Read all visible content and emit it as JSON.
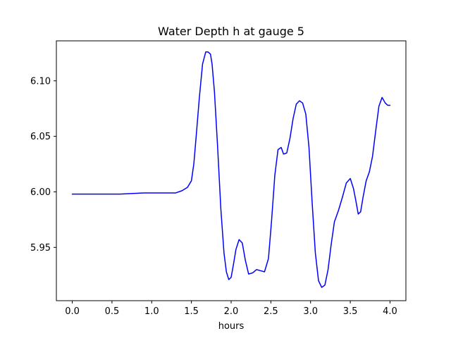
{
  "chart_data": {
    "type": "line",
    "title": "Water Depth h at gauge 5",
    "xlabel": "hours",
    "ylabel": "",
    "xlim": [
      -0.2,
      4.2
    ],
    "ylim": [
      5.902,
      6.136
    ],
    "xticks": [
      0.0,
      0.5,
      1.0,
      1.5,
      2.0,
      2.5,
      3.0,
      3.5,
      4.0
    ],
    "xtick_labels": [
      "0.0",
      "0.5",
      "1.0",
      "1.5",
      "2.0",
      "2.5",
      "3.0",
      "3.5",
      "4.0"
    ],
    "yticks": [
      5.95,
      6.0,
      6.05,
      6.1
    ],
    "ytick_labels": [
      "5.95",
      "6.00",
      "6.05",
      "6.10"
    ],
    "grid": false,
    "series": [
      {
        "color": "#0000ff",
        "x": [
          0.0,
          0.3,
          0.6,
          0.9,
          1.1,
          1.2,
          1.3,
          1.38,
          1.45,
          1.5,
          1.53,
          1.56,
          1.6,
          1.64,
          1.68,
          1.71,
          1.74,
          1.76,
          1.79,
          1.83,
          1.87,
          1.91,
          1.94,
          1.97,
          2.0,
          2.03,
          2.06,
          2.1,
          2.14,
          2.18,
          2.22,
          2.27,
          2.32,
          2.37,
          2.42,
          2.47,
          2.51,
          2.55,
          2.59,
          2.63,
          2.66,
          2.7,
          2.74,
          2.78,
          2.82,
          2.86,
          2.9,
          2.94,
          2.98,
          3.02,
          3.06,
          3.1,
          3.14,
          3.18,
          3.22,
          3.26,
          3.3,
          3.35,
          3.4,
          3.45,
          3.5,
          3.54,
          3.57,
          3.6,
          3.63,
          3.66,
          3.7,
          3.74,
          3.78,
          3.82,
          3.86,
          3.9,
          3.94,
          3.97,
          4.0
        ],
        "y": [
          5.998,
          5.998,
          5.998,
          5.999,
          5.999,
          5.999,
          5.999,
          6.001,
          6.004,
          6.01,
          6.025,
          6.05,
          6.085,
          6.115,
          6.126,
          6.126,
          6.124,
          6.115,
          6.09,
          6.04,
          5.985,
          5.945,
          5.928,
          5.921,
          5.923,
          5.935,
          5.948,
          5.957,
          5.954,
          5.938,
          5.926,
          5.927,
          5.93,
          5.929,
          5.928,
          5.94,
          5.975,
          6.015,
          6.038,
          6.04,
          6.034,
          6.035,
          6.048,
          6.066,
          6.079,
          6.082,
          6.08,
          6.07,
          6.04,
          5.99,
          5.945,
          5.92,
          5.914,
          5.916,
          5.93,
          5.953,
          5.973,
          5.983,
          5.995,
          6.008,
          6.012,
          6.003,
          5.992,
          5.98,
          5.982,
          5.995,
          6.01,
          6.018,
          6.032,
          6.055,
          6.077,
          6.085,
          6.08,
          6.078,
          6.078
        ]
      }
    ]
  }
}
